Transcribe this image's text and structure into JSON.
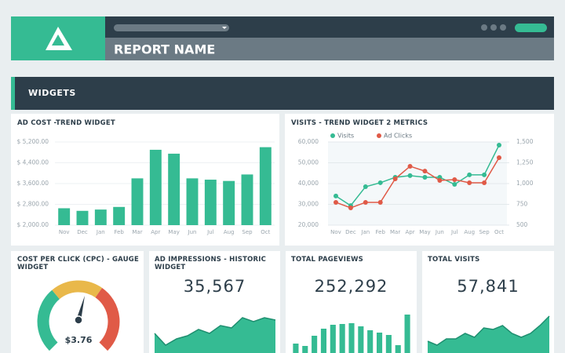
{
  "header": {
    "report_name": "REPORT NAME",
    "section": "WIDGETS"
  },
  "chart_data": [
    {
      "type": "bar",
      "title": "AD COST -TREND WIDGET",
      "categories": [
        "Nov",
        "Dec",
        "Jan",
        "Feb",
        "Mar",
        "Apr",
        "May",
        "Jun",
        "Jul",
        "Aug",
        "Sep",
        "Oct"
      ],
      "values": [
        2650,
        2550,
        2600,
        2700,
        3800,
        4900,
        4750,
        3800,
        3750,
        3700,
        3950,
        5000
      ],
      "color": "#35bb93",
      "ylim": [
        2000,
        5200
      ],
      "yticks": [
        {
          "value": 2000,
          "label": "$ 2,000.00"
        },
        {
          "value": 2800,
          "label": "$ 2,800.00"
        },
        {
          "value": 3600,
          "label": "$ 3,600.00"
        },
        {
          "value": 4400,
          "label": "$ 4,400.00"
        },
        {
          "value": 5200,
          "label": "$ 5,200.00"
        }
      ]
    },
    {
      "type": "line",
      "title": "VISITS - TREND WIDGET 2 METRICS",
      "categories": [
        "Nov",
        "Dec",
        "Jan",
        "Feb",
        "Mar",
        "Apr",
        "May",
        "Jun",
        "Jul",
        "Aug",
        "Sep",
        "Oct"
      ],
      "series": [
        {
          "name": "Visits",
          "color": "#35bb93",
          "values": [
            34000,
            29400,
            38500,
            40400,
            43000,
            43800,
            43000,
            43000,
            39600,
            44200,
            44200,
            58500
          ]
        },
        {
          "name": "Ad Clicks",
          "color": "#e05a47",
          "axis": "y2",
          "values": [
            774,
            708,
            774,
            774,
            1057,
            1208,
            1150,
            1038,
            1047,
            1009,
            1009,
            1311
          ]
        }
      ],
      "ylim": [
        20000,
        60000
      ],
      "yticks": [
        {
          "value": 20000,
          "label": "20,000"
        },
        {
          "value": 30000,
          "label": "30,000"
        },
        {
          "value": 40000,
          "label": "40,000"
        },
        {
          "value": 50000,
          "label": "50,000"
        },
        {
          "value": 60000,
          "label": "60,000"
        }
      ],
      "y2lim": [
        500,
        1500
      ],
      "y2ticks": [
        500,
        750,
        {
          "value": 1000,
          "label": "1,000"
        },
        {
          "value": 1250,
          "label": "1,250"
        },
        {
          "value": 1500,
          "label": "1,500"
        }
      ]
    },
    {
      "type": "gauge",
      "title": "COST PER CLICK (CPC) - GAUGE WIDGET",
      "value": 3.76,
      "value_label": "$3.76"
    },
    {
      "type": "area",
      "title": "AD IMPRESSIONS - HISTORIC WIDGET",
      "value": 35567,
      "value_label": "35,567",
      "color": "#35bb93",
      "values": [
        25,
        10,
        18,
        22,
        30,
        25,
        35,
        32,
        45,
        40,
        45,
        42
      ]
    },
    {
      "type": "bar",
      "title": "TOTAL PAGEVIEWS",
      "value": 252292,
      "value_label": "252,292",
      "color": "#35bb93",
      "values": [
        12,
        9,
        22,
        31,
        36,
        37,
        38,
        34,
        29,
        26,
        23,
        10,
        49
      ]
    },
    {
      "type": "area",
      "title": "TOTAL VISITS",
      "value": 57841,
      "value_label": "57,841",
      "color": "#35bb93",
      "values": [
        15,
        10,
        18,
        18,
        25,
        20,
        32,
        30,
        35,
        25,
        20,
        25,
        35,
        47
      ]
    }
  ]
}
